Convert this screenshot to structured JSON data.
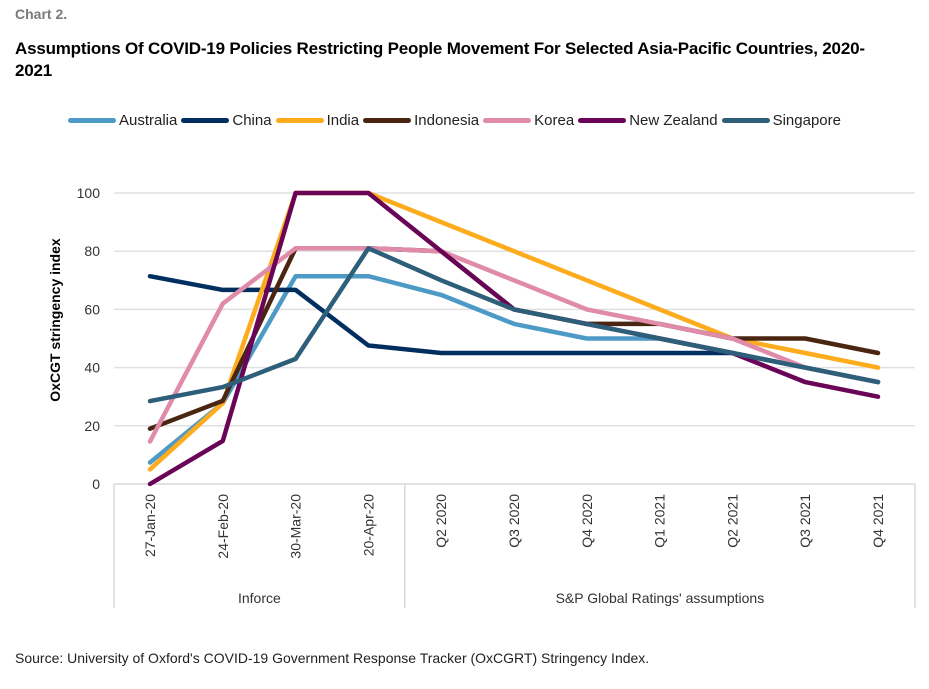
{
  "header": {
    "chart_label": "Chart 2.",
    "title": "Assumptions Of COVID-19 Policies Restricting People Movement For Selected Asia-Pacific Countries, 2020-2021"
  },
  "footer": {
    "source": "Source: University of Oxford's COVID-19 Government Response Tracker (OxCGRT) Stringency Index."
  },
  "chart_data": {
    "type": "line",
    "title": "Assumptions Of COVID-19 Policies Restricting People Movement For Selected Asia-Pacific Countries, 2020-2021",
    "xlabel": "",
    "ylabel": "OxCGT stringency index",
    "ylim": [
      0,
      100
    ],
    "yticks": [
      0,
      20,
      40,
      60,
      80,
      100
    ],
    "grid": true,
    "legend_position": "top",
    "categories": [
      "27-Jan-20",
      "24-Feb-20",
      "30-Mar-20",
      "20-Apr-20",
      "Q2 2020",
      "Q3 2020",
      "Q4 2020",
      "Q1 2021",
      "Q2 2021",
      "Q3 2021",
      "Q4 2021"
    ],
    "category_groups": [
      {
        "label": "Inforce",
        "count": 4
      },
      {
        "label": "S&P Global Ratings' assumptions",
        "count": 7
      }
    ],
    "series": [
      {
        "name": "Australia",
        "color": "#4e9ac6",
        "values": [
          7.4,
          27.8,
          71.4,
          71.4,
          65,
          55,
          50,
          50,
          45,
          40,
          35
        ]
      },
      {
        "name": "China",
        "color": "#002f5f",
        "values": [
          71.4,
          66.7,
          66.7,
          47.6,
          45,
          45,
          45,
          45,
          45,
          40,
          35
        ]
      },
      {
        "name": "India",
        "color": "#fcac1c",
        "values": [
          5,
          27.8,
          100,
          100,
          90,
          80,
          70,
          60,
          50,
          45,
          40
        ]
      },
      {
        "name": "Indonesia",
        "color": "#4a2511",
        "values": [
          19,
          28.6,
          81,
          81,
          80,
          60,
          55,
          55,
          50,
          50,
          45
        ]
      },
      {
        "name": "Korea",
        "color": "#df8ba9",
        "values": [
          14.6,
          62,
          81,
          81,
          80,
          70,
          60,
          55,
          50,
          40,
          35
        ]
      },
      {
        "name": "New Zealand",
        "color": "#6a0457",
        "values": [
          0,
          14.8,
          100,
          100,
          80,
          60,
          55,
          50,
          45,
          35,
          30
        ]
      },
      {
        "name": "Singapore",
        "color": "#2e5f7a",
        "values": [
          28.5,
          33.3,
          43,
          81,
          70,
          60,
          55,
          50,
          45,
          40,
          35
        ]
      }
    ]
  }
}
